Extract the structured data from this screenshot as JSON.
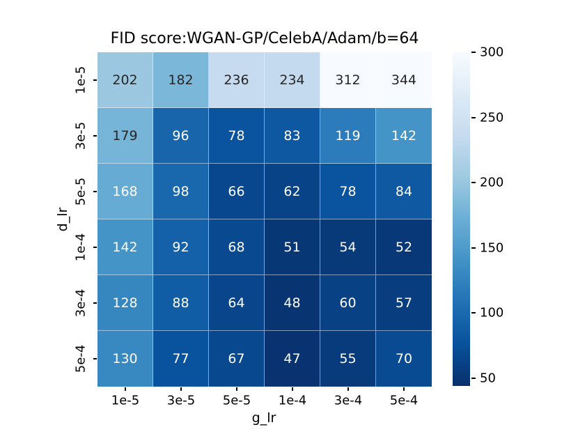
{
  "chart_data": {
    "type": "heatmap",
    "title": "FID score:WGAN-GP/CelebA/Adam/b=64",
    "xlabel": "g_lr",
    "ylabel": "d_lr",
    "x_ticklabels": [
      "1e-5",
      "3e-5",
      "5e-5",
      "1e-4",
      "3e-4",
      "5e-4"
    ],
    "y_ticklabels": [
      "1e-5",
      "3e-5",
      "5e-5",
      "1e-4",
      "3e-4",
      "5e-4"
    ],
    "values": [
      [
        202,
        182,
        236,
        234,
        312,
        344
      ],
      [
        179,
        96,
        78,
        83,
        119,
        142
      ],
      [
        168,
        98,
        66,
        62,
        78,
        84
      ],
      [
        142,
        92,
        68,
        51,
        54,
        52
      ],
      [
        128,
        88,
        64,
        48,
        60,
        57
      ],
      [
        130,
        77,
        67,
        47,
        55,
        70
      ]
    ],
    "colormap": "Blues_r",
    "colormap_anchors_light_to_dark": [
      "#f7fbff",
      "#deebf7",
      "#c6dbef",
      "#9ecae1",
      "#6baed6",
      "#4292c6",
      "#2171b5",
      "#08519c",
      "#08306b"
    ],
    "color_scale": {
      "vmin": 44,
      "vmax": 300
    },
    "colorbar_ticks": [
      300,
      250,
      200,
      150,
      100,
      50
    ],
    "legend_position": "right-colorbar",
    "grid": "white-cell-separators",
    "colors": {
      "annotation_dark_text": "#262626",
      "annotation_light_text": "#ffffff",
      "cell_gridline": "rgba(255,255,255,0.5)",
      "tick_mark": "#000000",
      "background": "#ffffff"
    }
  }
}
